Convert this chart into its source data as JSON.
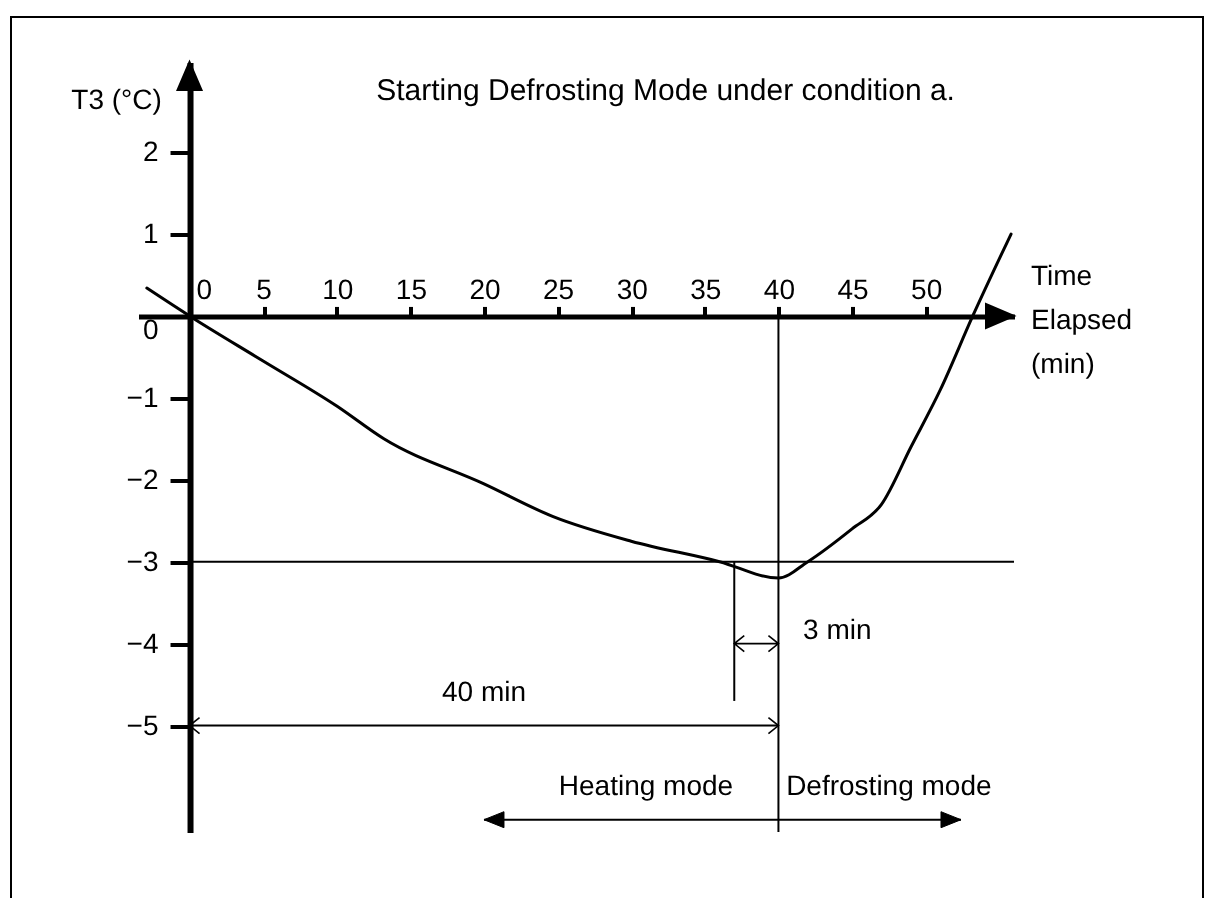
{
  "chart_data": {
    "type": "line",
    "title": "Starting Defrosting Mode under condition a.",
    "xlabel": "Time Elapsed (min)",
    "ylabel": "T3 (°C)",
    "x": [
      -2.9,
      0,
      5,
      10,
      13.2,
      20,
      24.7,
      30,
      36,
      40,
      42,
      45,
      47,
      49,
      51,
      53.2,
      55.8
    ],
    "series": [
      {
        "color": "#000000",
        "values": [
          0.34,
          0,
          -0.55,
          -1.1,
          -1.5,
          -2.05,
          -2.45,
          -2.75,
          -3.0,
          -3.2,
          -3.0,
          -2.6,
          -2.3,
          -1.6,
          -0.9,
          0,
          1.0
        ]
      }
    ],
    "xlim": [
      -3.5,
      56
    ],
    "ylim": [
      -6.3,
      3.1
    ],
    "xticks": [
      0,
      5,
      10,
      15,
      20,
      25,
      30,
      35,
      40,
      45,
      50
    ],
    "yticks": [
      -5,
      -4,
      -3,
      -2,
      -1,
      0,
      1,
      2
    ],
    "grid": false,
    "legend": false,
    "marker": "none",
    "line_style": "solid",
    "ref_lines": [
      {
        "axis": "y",
        "value": -3
      },
      {
        "axis": "x",
        "value": 40
      }
    ],
    "annotations": [
      "40 min",
      "3 min",
      "Heating mode",
      "Defrosting mode"
    ]
  }
}
